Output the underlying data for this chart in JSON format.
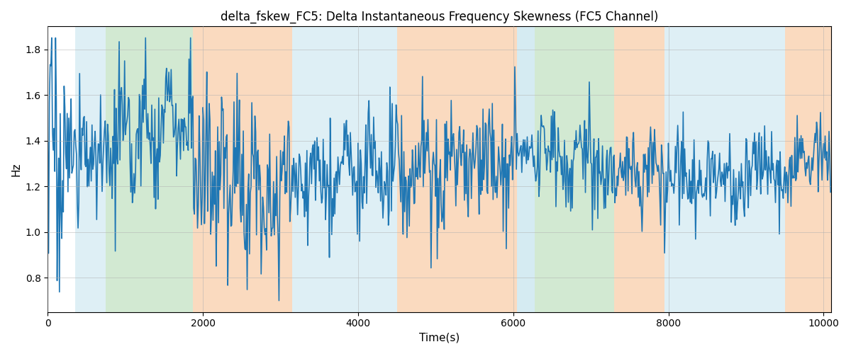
{
  "title": "delta_fskew_FC5: Delta Instantaneous Frequency Skewness (FC5 Channel)",
  "xlabel": "Time(s)",
  "ylabel": "Hz",
  "xlim": [
    0,
    10100
  ],
  "ylim": [
    0.65,
    1.9
  ],
  "line_color": "#1f77b4",
  "line_width": 1.2,
  "bg_color": "#ffffff",
  "grid_color": "#b0b0b0",
  "figsize": [
    12,
    5
  ],
  "dpi": 100,
  "regions": [
    {
      "start": 350,
      "end": 750,
      "color": "#add8e6",
      "alpha": 0.4
    },
    {
      "start": 750,
      "end": 1870,
      "color": "#90c990",
      "alpha": 0.4
    },
    {
      "start": 1870,
      "end": 3150,
      "color": "#f4a460",
      "alpha": 0.4
    },
    {
      "start": 3150,
      "end": 4500,
      "color": "#add8e6",
      "alpha": 0.4
    },
    {
      "start": 4500,
      "end": 6050,
      "color": "#f4a460",
      "alpha": 0.4
    },
    {
      "start": 6050,
      "end": 6280,
      "color": "#add8e6",
      "alpha": 0.5
    },
    {
      "start": 6280,
      "end": 7300,
      "color": "#90c990",
      "alpha": 0.4
    },
    {
      "start": 7300,
      "end": 7950,
      "color": "#f4a460",
      "alpha": 0.4
    },
    {
      "start": 7950,
      "end": 9500,
      "color": "#add8e6",
      "alpha": 0.4
    },
    {
      "start": 9500,
      "end": 10100,
      "color": "#f4a460",
      "alpha": 0.4
    }
  ],
  "seed": 17,
  "n_points": 10100,
  "sampling_step": 10
}
